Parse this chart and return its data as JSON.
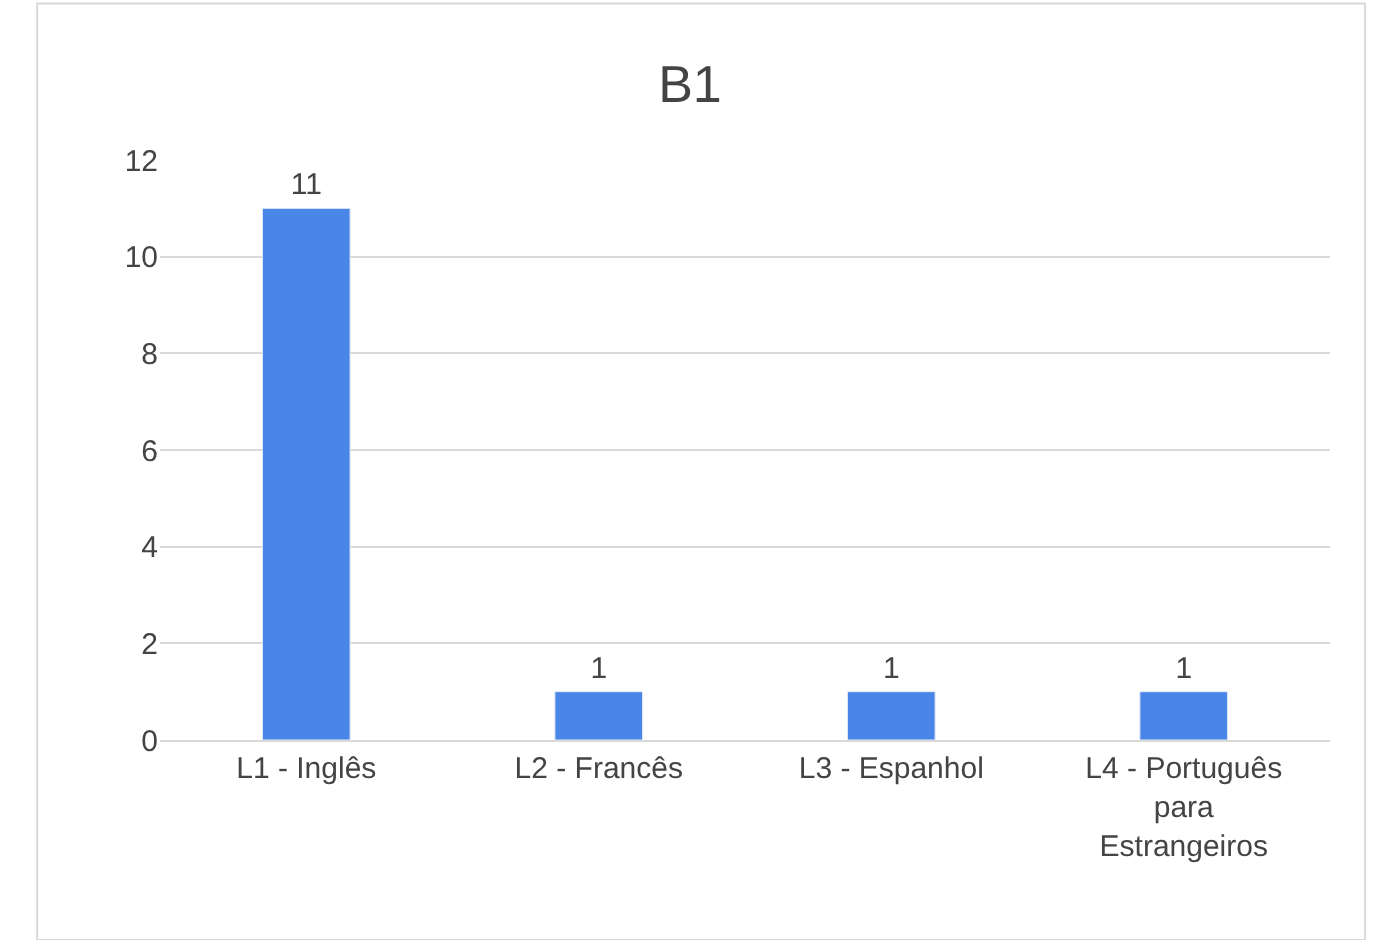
{
  "chart_data": {
    "type": "bar",
    "title": "B1",
    "categories": [
      "L1 - Inglês",
      "L2 - Francês",
      "L3 - Espanhol",
      "L4 - Português para Estrangeiros"
    ],
    "values": [
      11,
      1,
      1,
      1
    ],
    "color": "#4a86e8",
    "ylim": [
      0,
      12
    ],
    "yticks": [
      0,
      2,
      4,
      6,
      8,
      10,
      12
    ],
    "grid": "y",
    "data_labels": true
  }
}
